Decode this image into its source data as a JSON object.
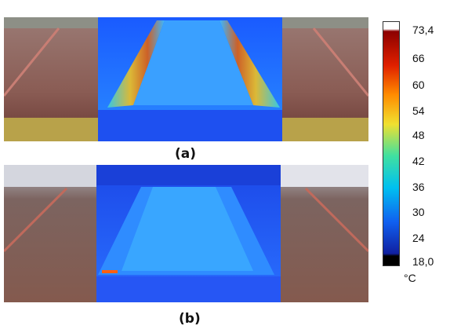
{
  "captions": {
    "a": "(a)",
    "b": "(b)"
  },
  "colorbar": {
    "unit": "°C",
    "ticks": [
      "73,4",
      "66",
      "60",
      "54",
      "48",
      "42",
      "36",
      "30",
      "24",
      "18,0"
    ],
    "max_color": "#ffffff",
    "min_color": "#000000"
  }
}
